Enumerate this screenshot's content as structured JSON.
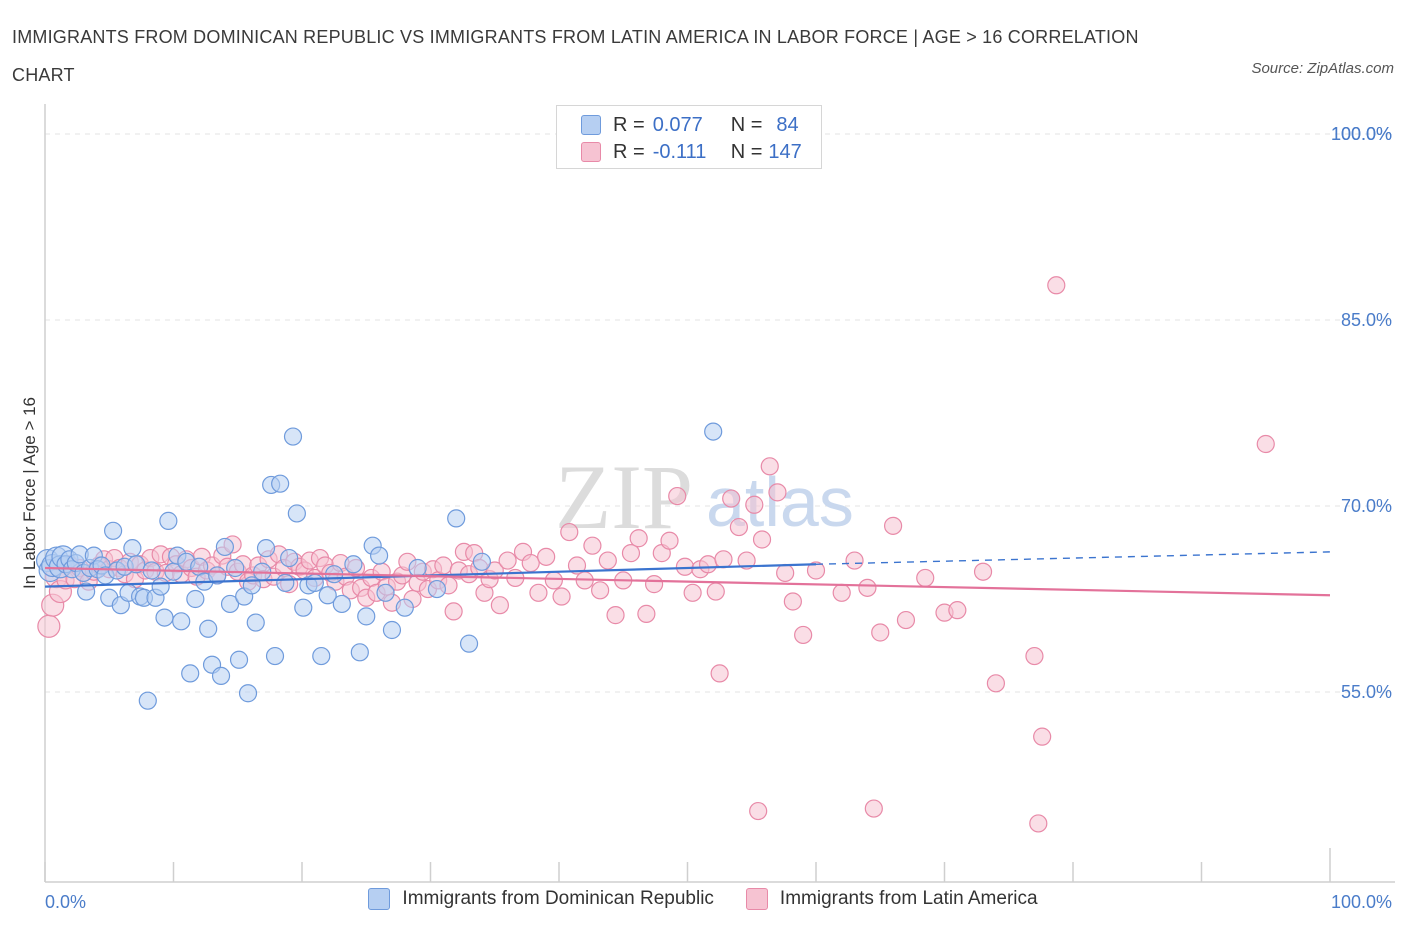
{
  "header": {
    "title": "IMMIGRANTS FROM DOMINICAN REPUBLIC VS IMMIGRANTS FROM LATIN AMERICA IN LABOR FORCE | AGE > 16 CORRELATION CHART",
    "source": "Source: ZipAtlas.com"
  },
  "legend": {
    "r_label": "R =",
    "n_label": "N =",
    "series1_r": "0.077",
    "series1_n": "84",
    "series2_r": "-0.111",
    "series2_n": "147"
  },
  "watermark": {
    "zip": "ZIP",
    "atlas": "atlas"
  },
  "colors": {
    "blue_fill": "#b6cff2",
    "blue_stroke": "#6f9bdc",
    "blue_line": "#3b74cf",
    "pink_fill": "#f6c3d2",
    "pink_stroke": "#e88aa8",
    "pink_line": "#e3729a",
    "tick_text": "#4a7cc9"
  },
  "chart_data": {
    "type": "scatter",
    "title": "IMMIGRANTS FROM DOMINICAN REPUBLIC VS IMMIGRANTS FROM LATIN AMERICA IN LABOR FORCE | AGE > 16 CORRELATION CHART",
    "xlabel": "",
    "ylabel": "In Labor Force | Age > 16",
    "xlim": [
      0,
      100
    ],
    "ylim": [
      40,
      100
    ],
    "x_tick_labels": [
      "0.0%",
      "100.0%"
    ],
    "y_ticks": [
      55,
      70,
      85,
      100
    ],
    "y_tick_labels": [
      "55.0%",
      "70.0%",
      "85.0%",
      "100.0%"
    ],
    "grid": true,
    "legend_position": "top-center",
    "series": [
      {
        "name": "Immigrants from Dominican Republic",
        "color": "#b6cff2",
        "R": 0.077,
        "N": 84,
        "trend": {
          "x": [
            0,
            60
          ],
          "y": [
            63.5,
            65.3
          ],
          "dashed_extension": {
            "x": [
              60,
              100
            ],
            "y": [
              65.3,
              66.3
            ]
          }
        },
        "points": [
          [
            0.2,
            65.6
          ],
          [
            0.4,
            64.8
          ],
          [
            0.6,
            65.2
          ],
          [
            0.9,
            65.8
          ],
          [
            1.2,
            65.1
          ],
          [
            1.4,
            65.9
          ],
          [
            1.6,
            65.3
          ],
          [
            1.9,
            65.7
          ],
          [
            2.1,
            64.9
          ],
          [
            2.4,
            65.4
          ],
          [
            2.7,
            66.1
          ],
          [
            3.0,
            64.6
          ],
          [
            3.2,
            63.1
          ],
          [
            3.5,
            65.0
          ],
          [
            3.8,
            66.0
          ],
          [
            4.1,
            64.9
          ],
          [
            4.4,
            65.2
          ],
          [
            4.7,
            64.4
          ],
          [
            5.0,
            62.6
          ],
          [
            5.3,
            68.0
          ],
          [
            5.6,
            64.8
          ],
          [
            5.9,
            62.0
          ],
          [
            6.2,
            65.1
          ],
          [
            6.5,
            63.0
          ],
          [
            6.8,
            66.6
          ],
          [
            7.1,
            65.3
          ],
          [
            7.4,
            62.7
          ],
          [
            7.7,
            62.6
          ],
          [
            8.0,
            54.3
          ],
          [
            8.3,
            64.8
          ],
          [
            8.6,
            62.6
          ],
          [
            9.0,
            63.5
          ],
          [
            9.3,
            61.0
          ],
          [
            9.6,
            68.8
          ],
          [
            10.0,
            64.7
          ],
          [
            10.3,
            66.0
          ],
          [
            10.6,
            60.7
          ],
          [
            11.0,
            65.5
          ],
          [
            11.3,
            56.5
          ],
          [
            11.7,
            62.5
          ],
          [
            12.0,
            65.1
          ],
          [
            12.4,
            63.9
          ],
          [
            12.7,
            60.1
          ],
          [
            13.0,
            57.2
          ],
          [
            13.4,
            64.4
          ],
          [
            13.7,
            56.3
          ],
          [
            14.0,
            66.7
          ],
          [
            14.4,
            62.1
          ],
          [
            14.8,
            65.0
          ],
          [
            15.1,
            57.6
          ],
          [
            15.5,
            62.7
          ],
          [
            15.8,
            54.9
          ],
          [
            16.1,
            63.6
          ],
          [
            16.4,
            60.6
          ],
          [
            16.9,
            64.7
          ],
          [
            17.2,
            66.6
          ],
          [
            17.6,
            71.7
          ],
          [
            17.9,
            57.9
          ],
          [
            18.3,
            71.8
          ],
          [
            18.7,
            63.8
          ],
          [
            19.0,
            65.8
          ],
          [
            19.3,
            75.6
          ],
          [
            19.6,
            69.4
          ],
          [
            20.1,
            61.8
          ],
          [
            20.5,
            63.6
          ],
          [
            21.0,
            63.8
          ],
          [
            21.5,
            57.9
          ],
          [
            22.0,
            62.8
          ],
          [
            22.5,
            64.5
          ],
          [
            23.1,
            62.1
          ],
          [
            24.0,
            65.3
          ],
          [
            24.5,
            58.2
          ],
          [
            25.0,
            61.1
          ],
          [
            25.5,
            66.8
          ],
          [
            26.0,
            66.0
          ],
          [
            26.5,
            63.0
          ],
          [
            27.0,
            60.0
          ],
          [
            28.0,
            61.8
          ],
          [
            29.0,
            65.0
          ],
          [
            30.5,
            63.3
          ],
          [
            32.0,
            69.0
          ],
          [
            33.0,
            58.9
          ],
          [
            34.0,
            65.5
          ],
          [
            52.0,
            76.0
          ]
        ]
      },
      {
        "name": "Immigrants from Latin America",
        "color": "#f6c3d2",
        "R": -0.111,
        "N": 147,
        "trend": {
          "x": [
            0,
            100
          ],
          "y": [
            65.0,
            62.8
          ]
        },
        "points": [
          [
            0.3,
            60.3
          ],
          [
            0.6,
            62.0
          ],
          [
            0.9,
            64.3
          ],
          [
            1.2,
            63.1
          ],
          [
            1.6,
            64.0
          ],
          [
            1.9,
            65.3
          ],
          [
            2.3,
            64.1
          ],
          [
            2.7,
            65.0
          ],
          [
            3.0,
            64.6
          ],
          [
            3.4,
            63.9
          ],
          [
            3.8,
            64.7
          ],
          [
            4.2,
            65.2
          ],
          [
            4.6,
            65.7
          ],
          [
            5.0,
            64.9
          ],
          [
            5.4,
            65.8
          ],
          [
            5.8,
            65.0
          ],
          [
            6.2,
            64.5
          ],
          [
            6.6,
            65.5
          ],
          [
            7.0,
            64.1
          ],
          [
            7.4,
            65.3
          ],
          [
            7.8,
            64.8
          ],
          [
            8.2,
            65.8
          ],
          [
            8.6,
            64.7
          ],
          [
            9.0,
            66.1
          ],
          [
            9.4,
            64.6
          ],
          [
            9.8,
            65.9
          ],
          [
            10.2,
            65.3
          ],
          [
            10.6,
            64.5
          ],
          [
            11.0,
            65.7
          ],
          [
            11.4,
            65.0
          ],
          [
            11.8,
            64.3
          ],
          [
            12.2,
            65.9
          ],
          [
            12.6,
            64.8
          ],
          [
            13.0,
            65.2
          ],
          [
            13.4,
            64.4
          ],
          [
            13.8,
            66.0
          ],
          [
            14.2,
            65.1
          ],
          [
            14.6,
            66.9
          ],
          [
            15.0,
            64.7
          ],
          [
            15.4,
            65.3
          ],
          [
            15.8,
            63.9
          ],
          [
            16.2,
            64.4
          ],
          [
            16.6,
            65.2
          ],
          [
            17.0,
            64.1
          ],
          [
            17.4,
            65.7
          ],
          [
            17.8,
            64.3
          ],
          [
            18.2,
            66.1
          ],
          [
            18.6,
            65.0
          ],
          [
            19.0,
            63.7
          ],
          [
            19.4,
            65.5
          ],
          [
            19.8,
            65.1
          ],
          [
            20.2,
            64.8
          ],
          [
            20.6,
            65.6
          ],
          [
            21.0,
            64.2
          ],
          [
            21.4,
            65.8
          ],
          [
            21.8,
            65.2
          ],
          [
            22.2,
            64.6
          ],
          [
            22.6,
            63.9
          ],
          [
            23.0,
            65.4
          ],
          [
            23.4,
            64.3
          ],
          [
            23.8,
            63.2
          ],
          [
            24.2,
            65.0
          ],
          [
            24.6,
            63.4
          ],
          [
            25.0,
            62.6
          ],
          [
            25.4,
            64.2
          ],
          [
            25.8,
            63.0
          ],
          [
            26.2,
            64.7
          ],
          [
            26.6,
            63.5
          ],
          [
            27.0,
            62.2
          ],
          [
            27.4,
            63.9
          ],
          [
            27.8,
            64.4
          ],
          [
            28.2,
            65.5
          ],
          [
            28.6,
            62.5
          ],
          [
            29.0,
            63.8
          ],
          [
            29.4,
            64.7
          ],
          [
            29.8,
            63.3
          ],
          [
            30.2,
            64.9
          ],
          [
            30.6,
            64.0
          ],
          [
            31.0,
            65.2
          ],
          [
            31.4,
            63.6
          ],
          [
            31.8,
            61.5
          ],
          [
            32.2,
            64.8
          ],
          [
            32.6,
            66.3
          ],
          [
            33.0,
            64.5
          ],
          [
            33.4,
            66.2
          ],
          [
            33.8,
            65.0
          ],
          [
            34.2,
            63.0
          ],
          [
            34.6,
            64.1
          ],
          [
            35.0,
            64.8
          ],
          [
            35.4,
            62.0
          ],
          [
            36.0,
            65.6
          ],
          [
            36.6,
            64.2
          ],
          [
            37.2,
            66.3
          ],
          [
            37.8,
            65.4
          ],
          [
            38.4,
            63.0
          ],
          [
            39.0,
            65.9
          ],
          [
            39.6,
            64.0
          ],
          [
            40.2,
            62.7
          ],
          [
            40.8,
            67.9
          ],
          [
            41.4,
            65.2
          ],
          [
            42.0,
            64.0
          ],
          [
            42.6,
            66.8
          ],
          [
            43.2,
            63.2
          ],
          [
            43.8,
            65.6
          ],
          [
            44.4,
            61.2
          ],
          [
            45.0,
            64.0
          ],
          [
            45.6,
            66.2
          ],
          [
            46.2,
            67.4
          ],
          [
            46.8,
            61.3
          ],
          [
            47.4,
            63.7
          ],
          [
            48.0,
            66.2
          ],
          [
            48.6,
            67.2
          ],
          [
            49.2,
            70.8
          ],
          [
            49.8,
            65.1
          ],
          [
            50.4,
            63.0
          ],
          [
            51.0,
            64.9
          ],
          [
            51.6,
            65.3
          ],
          [
            52.2,
            63.1
          ],
          [
            52.8,
            65.7
          ],
          [
            53.4,
            70.6
          ],
          [
            54.0,
            68.3
          ],
          [
            54.6,
            65.6
          ],
          [
            55.2,
            70.1
          ],
          [
            55.8,
            67.3
          ],
          [
            56.4,
            73.2
          ],
          [
            57.0,
            71.1
          ],
          [
            57.6,
            64.6
          ],
          [
            58.2,
            62.3
          ],
          [
            59.0,
            59.6
          ],
          [
            60.0,
            64.8
          ],
          [
            62.0,
            63.0
          ],
          [
            63.0,
            65.6
          ],
          [
            64.0,
            63.4
          ],
          [
            65.0,
            59.8
          ],
          [
            66.0,
            68.4
          ],
          [
            67.0,
            60.8
          ],
          [
            68.5,
            64.2
          ],
          [
            70.0,
            61.4
          ],
          [
            71.0,
            61.6
          ],
          [
            73.0,
            64.7
          ],
          [
            74.0,
            55.7
          ],
          [
            77.0,
            57.9
          ],
          [
            78.7,
            87.8
          ],
          [
            95.0,
            75.0
          ],
          [
            52.5,
            56.5
          ],
          [
            55.5,
            45.4
          ],
          [
            64.5,
            45.6
          ],
          [
            77.3,
            44.4
          ],
          [
            77.6,
            51.4
          ]
        ]
      }
    ]
  }
}
